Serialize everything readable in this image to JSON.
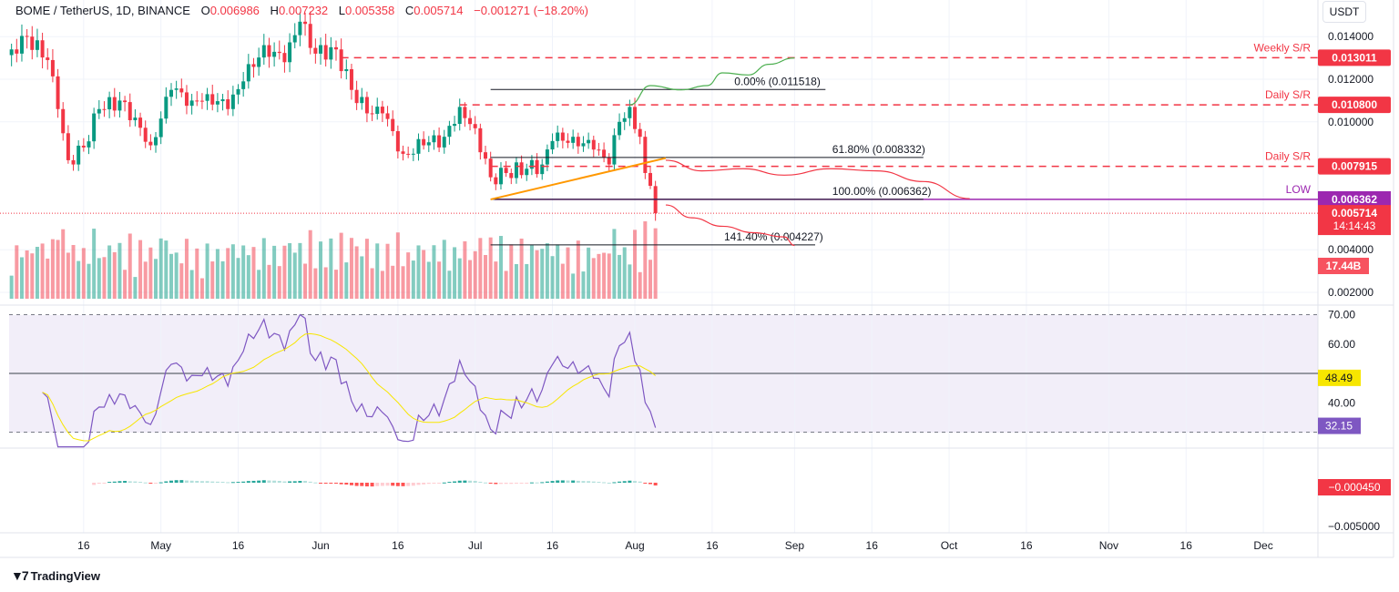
{
  "header": {
    "symbol": "BOME / TetherUS, 1D, BINANCE",
    "open_label": "O",
    "open": "0.006986",
    "high_label": "H",
    "high": "0.007232",
    "low_label": "L",
    "low": "0.005358",
    "close_label": "C",
    "close": "0.005714",
    "change": "−0.001271 (−18.20%)"
  },
  "currency": "USDT",
  "footer": {
    "brand": "TradingView"
  },
  "colors": {
    "up": "#089981",
    "down": "#f23645",
    "low_line": "#9c27b0",
    "rsi": "#7e57c2",
    "rsi_ma": "#f7e600",
    "trend": "#ff9800",
    "proj_up": "#4caf50"
  },
  "chart_data": {
    "type": "candlestick",
    "title": "BOME / TetherUS, 1D, BINANCE",
    "x_start": "2024-04-01",
    "x_end": "2024-12-15",
    "price_keypoints": [
      [
        "2024-04-02",
        0.0134
      ],
      [
        "2024-04-05",
        0.014
      ],
      [
        "2024-04-09",
        0.0129
      ],
      [
        "2024-04-11",
        0.0106
      ],
      [
        "2024-04-13",
        0.0082
      ],
      [
        "2024-04-16",
        0.0088
      ],
      [
        "2024-04-19",
        0.0106
      ],
      [
        "2024-04-23",
        0.011
      ],
      [
        "2024-04-26",
        0.0102
      ],
      [
        "2024-04-29",
        0.0089
      ],
      [
        "2024-05-03",
        0.0115
      ],
      [
        "2024-05-07",
        0.011
      ],
      [
        "2024-05-10",
        0.0113
      ],
      [
        "2024-05-14",
        0.0106
      ],
      [
        "2024-05-17",
        0.0119
      ],
      [
        "2024-05-21",
        0.0136
      ],
      [
        "2024-05-25",
        0.0128
      ],
      [
        "2024-05-28",
        0.0147
      ],
      [
        "2024-05-31",
        0.0132
      ],
      [
        "2024-06-04",
        0.0134
      ],
      [
        "2024-06-07",
        0.0115
      ],
      [
        "2024-06-10",
        0.0104
      ],
      [
        "2024-06-13",
        0.0104
      ],
      [
        "2024-06-17",
        0.0085
      ],
      [
        "2024-06-21",
        0.0089
      ],
      [
        "2024-06-25",
        0.0093
      ],
      [
        "2024-06-28",
        0.0107
      ],
      [
        "2024-07-01",
        0.0097
      ],
      [
        "2024-07-04",
        0.0074
      ],
      [
        "2024-07-07",
        0.0076
      ],
      [
        "2024-07-11",
        0.0078
      ],
      [
        "2024-07-14",
        0.008
      ],
      [
        "2024-07-16",
        0.0091
      ],
      [
        "2024-07-20",
        0.0093
      ],
      [
        "2024-07-24",
        0.0087
      ],
      [
        "2024-07-27",
        0.008
      ],
      [
        "2024-07-29",
        0.01
      ],
      [
        "2024-07-31",
        0.0107
      ],
      [
        "2024-08-02",
        0.0093
      ],
      [
        "2024-08-03",
        0.0076
      ],
      [
        "2024-08-04",
        0.007
      ],
      [
        "2024-08-05",
        0.005714
      ]
    ],
    "price_axis": {
      "ticks": [
        "0.014000",
        "0.012000",
        "0.010000",
        "0.004000",
        "0.002000"
      ],
      "range": [
        0.0016,
        0.0155
      ]
    },
    "time_ticks": [
      [
        "2024-04-16",
        "16"
      ],
      [
        "2024-05-01",
        "May"
      ],
      [
        "2024-05-16",
        "16"
      ],
      [
        "2024-06-01",
        "Jun"
      ],
      [
        "2024-06-16",
        "16"
      ],
      [
        "2024-07-01",
        "Jul"
      ],
      [
        "2024-07-16",
        "16"
      ],
      [
        "2024-08-01",
        "Aug"
      ],
      [
        "2024-08-16",
        "16"
      ],
      [
        "2024-09-01",
        "Sep"
      ],
      [
        "2024-09-16",
        "16"
      ],
      [
        "2024-10-01",
        "Oct"
      ],
      [
        "2024-10-16",
        "16"
      ],
      [
        "2024-11-01",
        "Nov"
      ],
      [
        "2024-11-16",
        "16"
      ],
      [
        "2024-12-01",
        "Dec"
      ]
    ],
    "sr_levels": [
      {
        "label": "Weekly S/R",
        "value": 0.013011,
        "text": "0.013011",
        "from": "2024-06-05"
      },
      {
        "label": "Daily S/R",
        "value": 0.0108,
        "text": "0.010800",
        "from": "2024-06-28"
      },
      {
        "label": "Daily S/R",
        "value": 0.007915,
        "text": "0.007915",
        "from": "2024-07-04"
      }
    ],
    "low_level": {
      "label": "LOW",
      "value": 0.006362,
      "text": "0.006362"
    },
    "last_price": {
      "text": "0.005714",
      "countdown": "14:14:43",
      "value": 0.005714
    },
    "volume_label": "17.44B",
    "fib": {
      "from": "2024-07-04",
      "levels": [
        {
          "label": "0.00% (0.011518)",
          "value": 0.011518,
          "to": "2024-09-07"
        },
        {
          "label": "61.80% (0.008332)",
          "value": 0.008332,
          "to": "2024-09-26"
        },
        {
          "label": "100.00% (0.006362)",
          "value": 0.006362,
          "to": "2024-09-26"
        },
        {
          "label": "141.40% (0.004227)",
          "value": 0.004227,
          "to": "2024-09-05"
        }
      ]
    },
    "trendline": [
      [
        "2024-07-04",
        0.006362
      ],
      [
        "2024-08-07",
        0.0083
      ]
    ],
    "projection_up": [
      [
        "2024-07-31",
        0.0108
      ],
      [
        "2024-08-04",
        0.0117
      ],
      [
        "2024-08-10",
        0.0115
      ],
      [
        "2024-08-15",
        0.0117
      ],
      [
        "2024-08-18",
        0.0123
      ],
      [
        "2024-08-23",
        0.0122
      ],
      [
        "2024-08-27",
        0.0127
      ],
      [
        "2024-09-01",
        0.013
      ]
    ],
    "projection_down_1": [
      [
        "2024-08-07",
        0.0082
      ],
      [
        "2024-08-14",
        0.0077
      ],
      [
        "2024-08-22",
        0.0078
      ],
      [
        "2024-08-30",
        0.0075
      ],
      [
        "2024-09-08",
        0.0078
      ],
      [
        "2024-09-17",
        0.0077
      ],
      [
        "2024-09-26",
        0.0072
      ],
      [
        "2024-10-05",
        0.0064
      ]
    ],
    "projection_down_2": [
      [
        "2024-08-07",
        0.0061
      ],
      [
        "2024-08-12",
        0.0055
      ],
      [
        "2024-08-18",
        0.0051
      ],
      [
        "2024-08-24",
        0.0048
      ],
      [
        "2024-08-30",
        0.0046
      ],
      [
        "2024-09-01",
        0.0042
      ]
    ],
    "rsi": {
      "ticks": [
        "70.00",
        "60.00",
        "40.00"
      ],
      "upper": 70,
      "lower": 30,
      "mid": 50,
      "value": "32.15",
      "ma_value": "48.49"
    },
    "macd": {
      "ticks": [
        "−0.005000"
      ],
      "value": "−0.000450"
    }
  }
}
